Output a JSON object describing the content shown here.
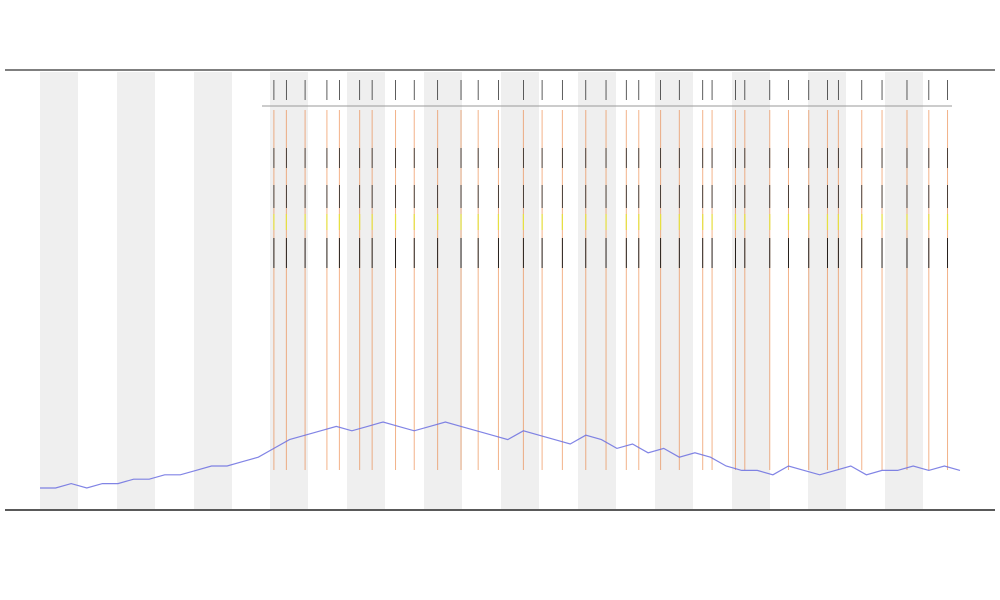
{
  "chart_data": {
    "type": "line",
    "series": [
      {
        "color": "#6b6fe0",
        "values": [
          5,
          5,
          6,
          5,
          6,
          6,
          7,
          7,
          8,
          8,
          9,
          10,
          10,
          11,
          12,
          14,
          16,
          17,
          18,
          19,
          18,
          19,
          20,
          19,
          18,
          19,
          20,
          19,
          18,
          17,
          16,
          18,
          17,
          16,
          15,
          17,
          16,
          14,
          15,
          13,
          14,
          12,
          13,
          12,
          10,
          9,
          9,
          8,
          10,
          9,
          8,
          9,
          10,
          8,
          9,
          9,
          10,
          9,
          10,
          9
        ]
      }
    ],
    "xlim": [
      0,
      59
    ],
    "ylim": [
      0,
      100
    ],
    "events": {
      "color": "#e8742a",
      "x": [
        15,
        15.8,
        17,
        18.4,
        19.2,
        20.5,
        21.3,
        22.8,
        24,
        25.5,
        27,
        28.1,
        29.4,
        31,
        32.2,
        33.5,
        35,
        36.3,
        37.6,
        38.4,
        39.8,
        41,
        42.5,
        43.1,
        44.6,
        45.2,
        46.8,
        48,
        49.3,
        50.5,
        51.2,
        52.7,
        54,
        55.6,
        57,
        58.2
      ]
    }
  }
}
